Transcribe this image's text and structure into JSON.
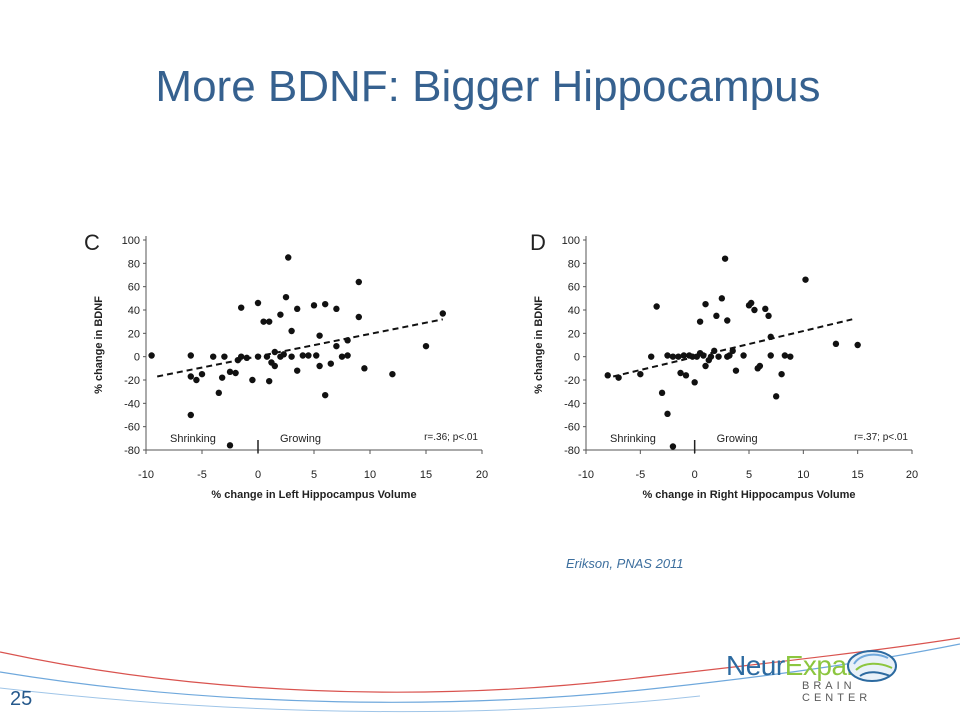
{
  "slide": {
    "title": "More BDNF: Bigger Hippocampus",
    "citation": "Erikson, PNAS  2011",
    "page_number": "25",
    "logo": {
      "name_part1": "Neur",
      "name_part2": "Expand",
      "tagline": "BRAIN CENTER",
      "icon": "brain-icon"
    }
  },
  "colors": {
    "title": "#36618f",
    "accent_red": "#d9534f",
    "accent_blue": "#6fa8dc"
  },
  "chart_data": [
    {
      "type": "scatter",
      "panel_label": "C",
      "xlabel": "% change in Left Hippocampus Volume",
      "ylabel": "% change in BDNF",
      "xlim": [
        -10,
        20
      ],
      "ylim": [
        -80,
        100
      ],
      "xticks": [
        "-10",
        "-5",
        "0",
        "5",
        "10",
        "15",
        "20"
      ],
      "yticks": [
        "100",
        "80",
        "60",
        "40",
        "20",
        "0",
        "-20",
        "-40",
        "-60",
        "-80"
      ],
      "annotations": [
        "Shrinking",
        "Growing",
        "r=.36; p<.01"
      ],
      "trend_line": {
        "style": "dashed",
        "x": [
          -9,
          16.5
        ],
        "y": [
          -17,
          32
        ]
      },
      "points": [
        [
          -9.5,
          1
        ],
        [
          -6,
          1
        ],
        [
          -6,
          -17
        ],
        [
          -5.5,
          -20
        ],
        [
          -5,
          -15
        ],
        [
          -4,
          0
        ],
        [
          -3.5,
          -31
        ],
        [
          -3.2,
          -18
        ],
        [
          -3,
          0
        ],
        [
          -2.5,
          -13
        ],
        [
          -2,
          -14
        ],
        [
          -1.8,
          -3
        ],
        [
          -1.5,
          0
        ],
        [
          -1.5,
          42
        ],
        [
          -1,
          -1
        ],
        [
          -0.5,
          -20
        ],
        [
          0,
          0
        ],
        [
          0,
          46
        ],
        [
          0.5,
          30
        ],
        [
          0.8,
          0
        ],
        [
          1,
          30
        ],
        [
          1,
          -21
        ],
        [
          1.2,
          -5
        ],
        [
          1.5,
          4
        ],
        [
          1.5,
          -8
        ],
        [
          2,
          0
        ],
        [
          2,
          36
        ],
        [
          2.3,
          2
        ],
        [
          2.5,
          51
        ],
        [
          2.7,
          85
        ],
        [
          3,
          0
        ],
        [
          3,
          22
        ],
        [
          3.5,
          41
        ],
        [
          3.5,
          -12
        ],
        [
          4,
          1
        ],
        [
          4.5,
          1
        ],
        [
          5,
          44
        ],
        [
          5.2,
          1
        ],
        [
          5.5,
          18
        ],
        [
          5.5,
          -8
        ],
        [
          6,
          45
        ],
        [
          6,
          -33
        ],
        [
          6.5,
          -6
        ],
        [
          7,
          41
        ],
        [
          7,
          9
        ],
        [
          7.5,
          0
        ],
        [
          8,
          14
        ],
        [
          8,
          1
        ],
        [
          9,
          64
        ],
        [
          9,
          34
        ],
        [
          9.5,
          -10
        ],
        [
          12,
          -15
        ],
        [
          15,
          9
        ],
        [
          16.5,
          37
        ],
        [
          -6,
          -50
        ],
        [
          -2.5,
          -76
        ]
      ]
    },
    {
      "type": "scatter",
      "panel_label": "D",
      "xlabel": "% change in Right Hippocampus Volume",
      "ylabel": "% change in BDNF",
      "xlim": [
        -10,
        20
      ],
      "ylim": [
        -80,
        100
      ],
      "xticks": [
        "-10",
        "-5",
        "0",
        "5",
        "10",
        "15",
        "20"
      ],
      "yticks": [
        "100",
        "80",
        "60",
        "40",
        "20",
        "0",
        "-20",
        "-40",
        "-60",
        "-80"
      ],
      "annotations": [
        "Shrinking",
        "Growing",
        "r=.37; p<.01"
      ],
      "trend_line": {
        "style": "dashed",
        "x": [
          -7.5,
          14.5
        ],
        "y": [
          -17,
          32
        ]
      },
      "points": [
        [
          -8,
          -16
        ],
        [
          -7,
          -18
        ],
        [
          -5,
          -15
        ],
        [
          -4,
          0
        ],
        [
          -3.5,
          43
        ],
        [
          -3,
          -31
        ],
        [
          -2.5,
          1
        ],
        [
          -2,
          0
        ],
        [
          -1.5,
          0
        ],
        [
          -1.3,
          -14
        ],
        [
          -1,
          1
        ],
        [
          -0.8,
          -16
        ],
        [
          -0.5,
          1
        ],
        [
          -0.2,
          0
        ],
        [
          0,
          -22
        ],
        [
          0.2,
          0
        ],
        [
          0.5,
          30
        ],
        [
          0.5,
          3
        ],
        [
          0.8,
          1
        ],
        [
          1,
          45
        ],
        [
          1,
          -8
        ],
        [
          1.3,
          -3
        ],
        [
          1.5,
          0
        ],
        [
          1.8,
          5
        ],
        [
          2,
          35
        ],
        [
          2.2,
          0
        ],
        [
          2.5,
          50
        ],
        [
          2.8,
          84
        ],
        [
          3,
          0
        ],
        [
          3,
          31
        ],
        [
          3.2,
          1
        ],
        [
          3.5,
          5
        ],
        [
          3.8,
          -12
        ],
        [
          4.5,
          1
        ],
        [
          5,
          44
        ],
        [
          5.2,
          46
        ],
        [
          5.5,
          40
        ],
        [
          5.8,
          -10
        ],
        [
          6,
          -8
        ],
        [
          6.5,
          41
        ],
        [
          6.8,
          35
        ],
        [
          7,
          17
        ],
        [
          7,
          1
        ],
        [
          7.5,
          -34
        ],
        [
          8,
          -15
        ],
        [
          8.3,
          1
        ],
        [
          8.8,
          0
        ],
        [
          10.2,
          66
        ],
        [
          13,
          11
        ],
        [
          15,
          10
        ],
        [
          -2.5,
          -49
        ],
        [
          -2,
          -77
        ]
      ]
    }
  ]
}
